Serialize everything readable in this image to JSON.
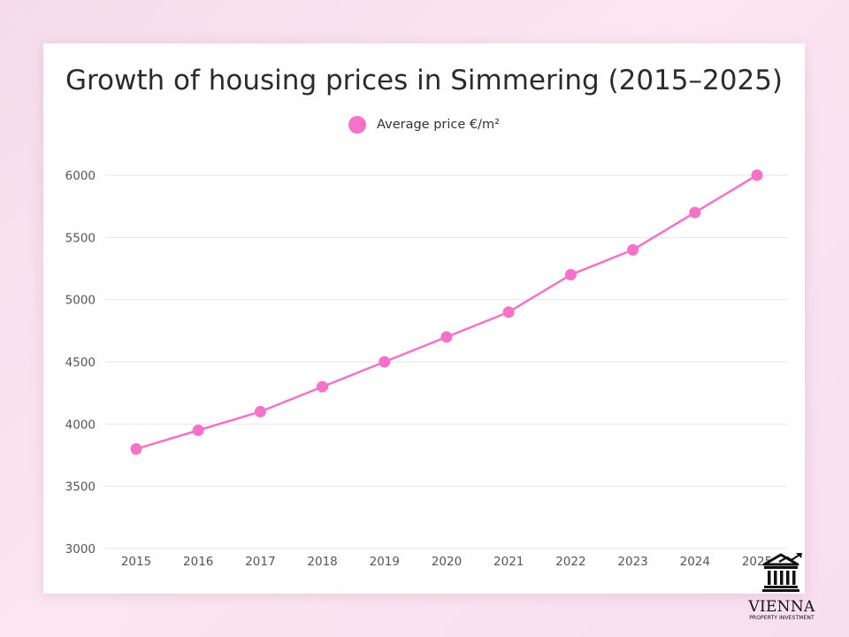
{
  "colors": {
    "series": "#f472c8",
    "grid": "#e6e6e6",
    "axis_text": "#555555",
    "background": "#ffffff"
  },
  "chart_data": {
    "type": "line",
    "title": "Growth of housing prices in Simmering (2015–2025)",
    "xlabel": "",
    "ylabel": "",
    "ylim": [
      3000,
      6000
    ],
    "yticks": [
      3000,
      3500,
      4000,
      4500,
      5000,
      5500,
      6000
    ],
    "grid": true,
    "legend_position": "top-center",
    "categories": [
      "2015",
      "2016",
      "2017",
      "2018",
      "2019",
      "2020",
      "2021",
      "2022",
      "2023",
      "2024",
      "2025"
    ],
    "series": [
      {
        "name": "Average price €/m²",
        "values": [
          3800,
          3950,
          4100,
          4300,
          4500,
          4700,
          4900,
          5200,
          5400,
          5700,
          6000
        ]
      }
    ]
  },
  "logo": {
    "icon": "bank-building-icon",
    "name": "VIENNA",
    "subtitle": "PROPERTY INVESTMENT"
  }
}
